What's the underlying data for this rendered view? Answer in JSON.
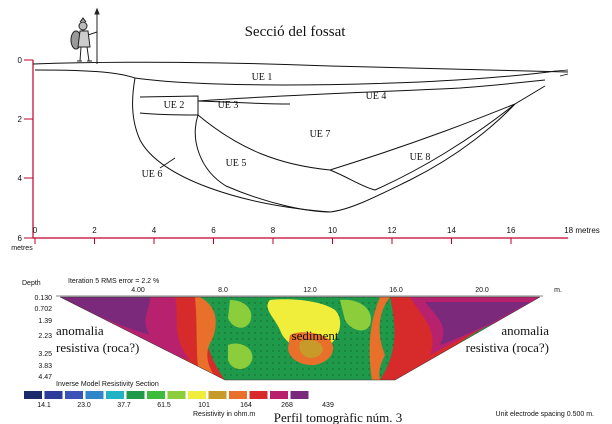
{
  "section": {
    "title": "Secció del fossat",
    "depth_unit": "metres",
    "distance_unit": "18 metres",
    "depth_ticks": [
      "0",
      "2",
      "4",
      "6"
    ],
    "x_ticks": [
      "0",
      "2",
      "4",
      "6",
      "8",
      "10",
      "12",
      "14",
      "16"
    ],
    "units": [
      "UE 1",
      "UE 2",
      "UE 3",
      "UE 4",
      "UE 5",
      "UE 6",
      "UE 7",
      "UE 8"
    ],
    "axis_color": "#c0002a"
  },
  "tomography": {
    "depth_label": "Depth",
    "iteration_label": "Iteration 5 RMS error = 2.2 %",
    "x_ticks": [
      "4.00",
      "8.0",
      "12.0",
      "16.0",
      "20.0"
    ],
    "x_unit": "m.",
    "depth_ticks": [
      "0.130",
      "0.702",
      "1.39",
      "2.23",
      "3.25",
      "3.83",
      "4.47"
    ],
    "annotation_left": [
      "anomalia",
      "resistiva (roca?)"
    ],
    "annotation_center": "sediment",
    "annotation_right": [
      "anomalia",
      "resistiva (roca?)"
    ],
    "legend_title": "Inverse Model Resistivity Section",
    "legend_colors": [
      "#1b2a6b",
      "#2b3c9a",
      "#3b53b8",
      "#2f86c8",
      "#1fb3c4",
      "#1f9a4a",
      "#3cbb3c",
      "#8ccd3c",
      "#f0ee3a",
      "#c89a2a",
      "#e8702a",
      "#d72a2a",
      "#b8216e",
      "#7b2a7b"
    ],
    "legend_values": [
      "14.1",
      "23.0",
      "37.7",
      "61.5",
      "101",
      "164",
      "268",
      "439"
    ],
    "resistivity_label": "Resistivity in ohm.m",
    "spacing_label": "Unit electrode spacing 0.500 m.",
    "caption": "Perfil tomogràfic núm. 3"
  }
}
